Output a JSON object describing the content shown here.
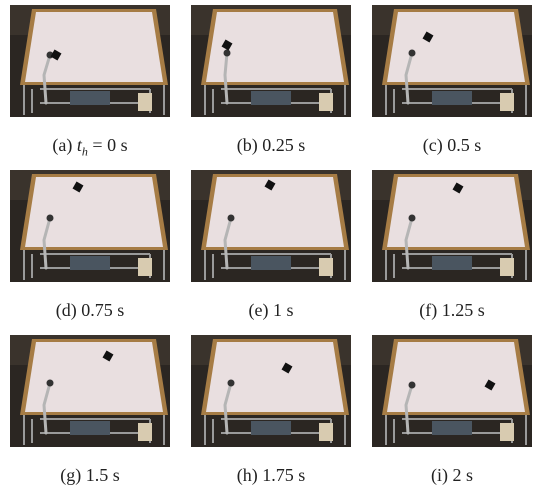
{
  "figure": {
    "captions": [
      {
        "label": "(a)",
        "var": "t",
        "sub": "h",
        "text": "= 0 s"
      },
      {
        "label": "(b)",
        "text": "0.25 s"
      },
      {
        "label": "(c)",
        "text": "0.5 s"
      },
      {
        "label": "(d)",
        "text": "0.75 s"
      },
      {
        "label": "(e)",
        "text": "1 s"
      },
      {
        "label": "(f)",
        "text": "1.25 s"
      },
      {
        "label": "(g)",
        "text": "1.5 s"
      },
      {
        "label": "(h)",
        "text": "1.75 s"
      },
      {
        "label": "(i)",
        "text": "2 s"
      }
    ]
  }
}
